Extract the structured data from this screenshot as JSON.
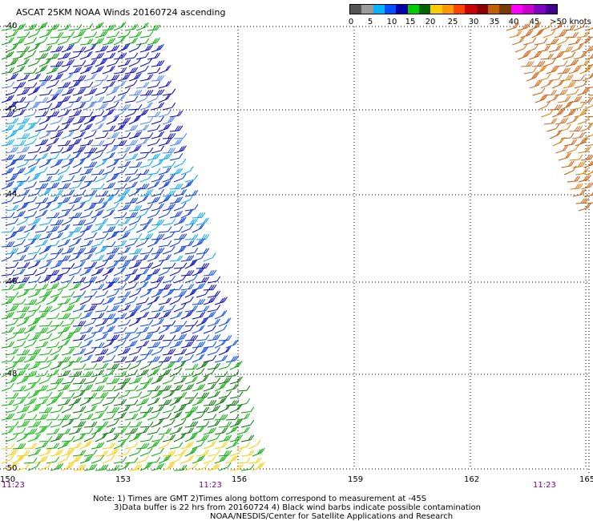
{
  "title": "ASCAT 25KM NOAA Winds 20160724 ascending",
  "legend": {
    "labels": [
      "0",
      "5",
      "10",
      "15",
      "20",
      "25",
      "30",
      "35",
      "40",
      "45",
      ">50 knots"
    ],
    "colors": [
      "#555555",
      "#9a9a9a",
      "#00b4ff",
      "#0050ff",
      "#0000aa",
      "#00cc00",
      "#006400",
      "#ffcc00",
      "#ff9900",
      "#ff4400",
      "#cc0000",
      "#8b0000",
      "#c06000",
      "#7a3b00",
      "#ff00ff",
      "#cc00cc",
      "#8000c0",
      "#400090"
    ]
  },
  "lat_labels": [
    "-40",
    "-42",
    "-44",
    "-46",
    "-48",
    "-50"
  ],
  "lon_labels": [
    "150",
    "153",
    "156",
    "159",
    "162",
    "165"
  ],
  "time_labels": [
    "11:23",
    "11:23",
    "11:23"
  ],
  "notes": {
    "line1": "Note: 1) Times are GMT 2)Times along bottom correspond to measurement at -45S",
    "line2": "3)Data buffer is 22 hrs from 20160724 4) Black wind barbs indicate possible contamination",
    "line3": "NOAA/NESDIS/Center for Satellite Applications and Research"
  }
}
